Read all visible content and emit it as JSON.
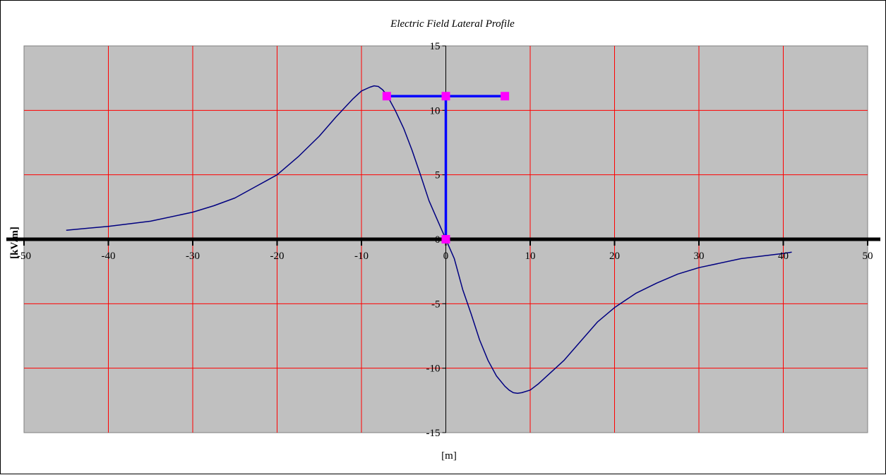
{
  "chart_data": {
    "type": "scatter",
    "title": "Electric Field Lateral Profile",
    "xlabel": "[m]",
    "ylabel": "[kV/m]",
    "xlim": [
      -50,
      50
    ],
    "ylim": [
      -15,
      15
    ],
    "x_ticks": [
      -50,
      -40,
      -30,
      -20,
      -10,
      0,
      10,
      20,
      30,
      40,
      50
    ],
    "y_ticks": [
      15,
      10,
      5,
      0,
      -5,
      -10,
      -15
    ],
    "x_tick_labels": [
      "-50",
      "-40",
      "-30",
      "-20",
      "-10",
      "0",
      "10",
      "20",
      "30",
      "40",
      "50"
    ],
    "y_tick_labels": [
      "15",
      "10",
      "5",
      "0",
      "-5",
      "-10",
      "-15"
    ],
    "grid": true,
    "legend": "none",
    "colors": {
      "plot_area": "#c0c0c0",
      "gridline": "#ff0000",
      "zero_axis": "#000000",
      "profile_curve": "#000080",
      "tower": "#0000ff",
      "tower_markers": "#ff00ff"
    },
    "series": [
      {
        "type": "line",
        "x": [
          -45,
          -40,
          -35,
          -30,
          -27.5,
          -25,
          -22.5,
          -20,
          -17.5,
          -15,
          -13,
          -11,
          -10,
          -9,
          -8.5,
          -8,
          -7.5,
          -7,
          -6,
          -5,
          -4,
          -3,
          -2,
          -1,
          0,
          1,
          2,
          3,
          4,
          5,
          6,
          7,
          7.5,
          8,
          8.5,
          9,
          10,
          11,
          12,
          14,
          16,
          18,
          20,
          22.5,
          25,
          27.5,
          30,
          35,
          40,
          41
        ],
        "y": [
          0.7,
          1.0,
          1.4,
          2.1,
          2.6,
          3.2,
          4.1,
          5.0,
          6.4,
          8.0,
          9.5,
          10.9,
          11.5,
          11.8,
          11.9,
          11.85,
          11.6,
          11.2,
          10.0,
          8.6,
          6.9,
          5.0,
          3.0,
          1.5,
          0.0,
          -1.5,
          -3.9,
          -5.8,
          -7.8,
          -9.4,
          -10.6,
          -11.4,
          -11.7,
          -11.9,
          -11.95,
          -11.9,
          -11.7,
          -11.2,
          -10.6,
          -9.4,
          -7.9,
          -6.4,
          -5.3,
          -4.2,
          -3.4,
          -2.7,
          -2.2,
          -1.5,
          -1.1,
          -1.0
        ]
      },
      {
        "type": "line",
        "x": [
          0,
          0
        ],
        "y": [
          0,
          11.1
        ]
      },
      {
        "type": "line",
        "x": [
          -7,
          0,
          7
        ],
        "y": [
          11.1,
          11.1,
          11.1
        ]
      },
      {
        "type": "scatter",
        "x": [
          -7,
          0,
          7,
          0
        ],
        "y": [
          11.1,
          11.1,
          11.1,
          0
        ]
      }
    ]
  }
}
